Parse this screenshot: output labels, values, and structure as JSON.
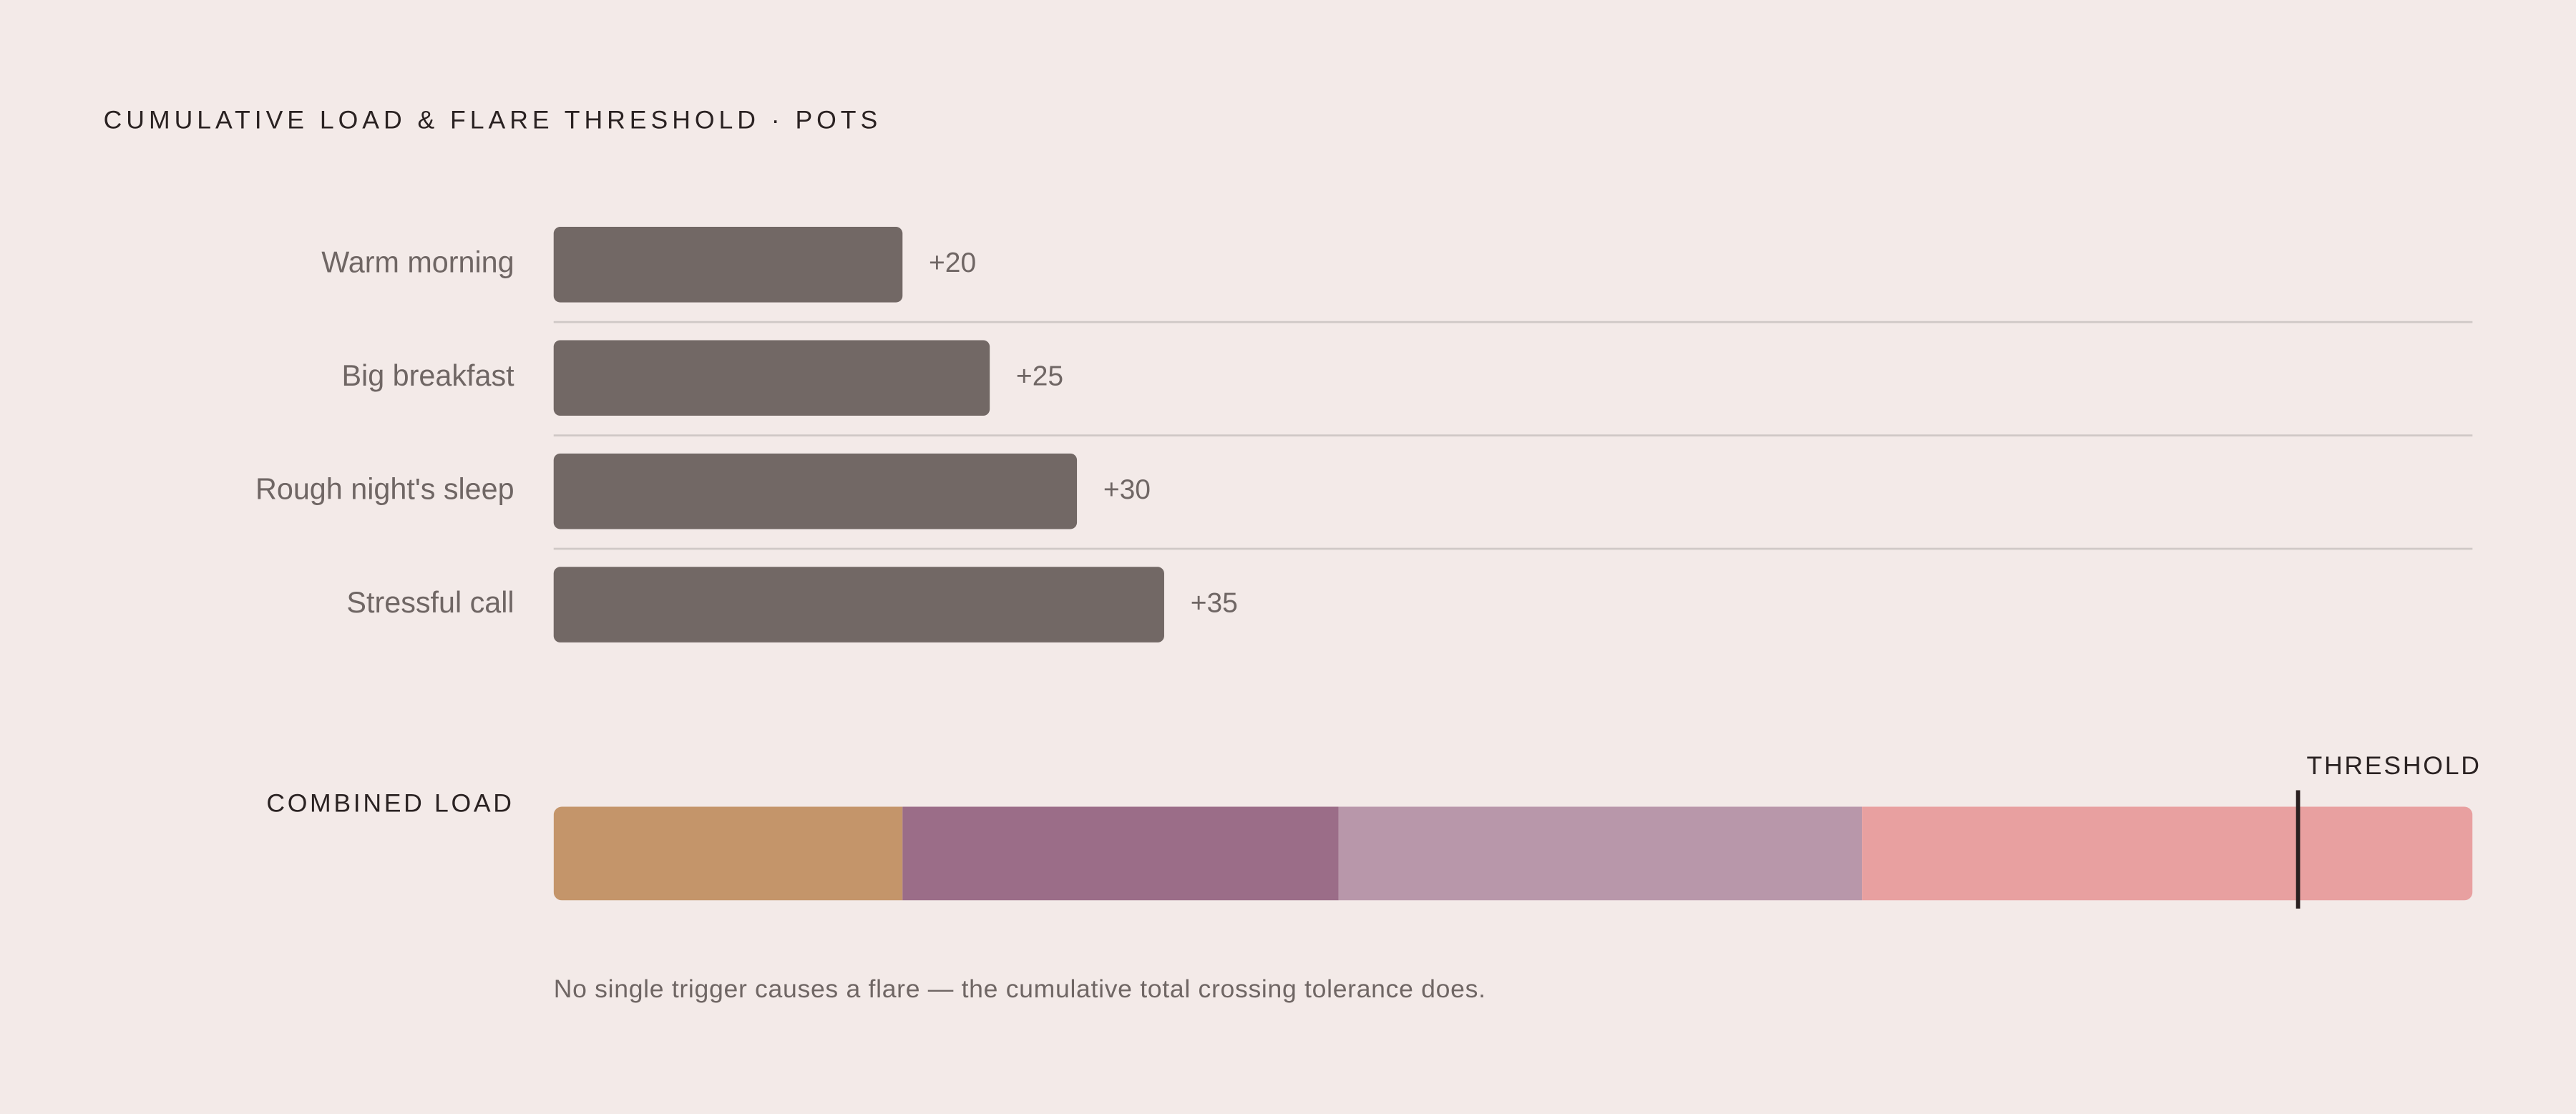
{
  "chart_data": {
    "type": "bar",
    "title": "CUMULATIVE LOAD & FLARE THRESHOLD · POTS",
    "categories": [
      "Warm morning",
      "Big breakfast",
      "Rough night's sleep",
      "Stressful call"
    ],
    "values": [
      20,
      25,
      30,
      35
    ],
    "value_labels": [
      "+20",
      "+25",
      "+30",
      "+35"
    ],
    "color": "#726865",
    "xlim": [
      0,
      110
    ],
    "combined": {
      "label": "COMBINED LOAD",
      "colors": [
        "#c4956a",
        "#9b6d88",
        "#b897aa",
        "#e8a0a0"
      ]
    },
    "threshold": {
      "value": 100,
      "label": "THRESHOLD"
    },
    "note": "No single trigger causes a flare — the cumulative total crossing tolerance does."
  }
}
